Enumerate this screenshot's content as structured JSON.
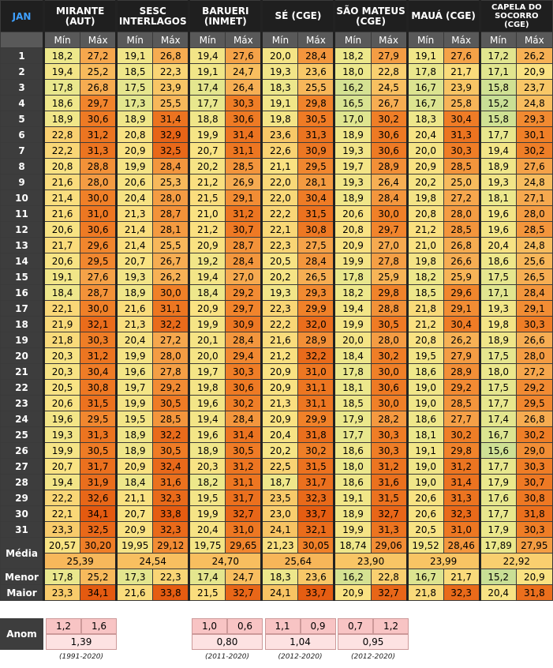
{
  "header": {
    "month": "JAN",
    "stations": [
      [
        "MIRANTE",
        "(AUT)"
      ],
      [
        "SESC",
        "INTERLAGOS"
      ],
      [
        "BARUERI",
        "(INMET)"
      ],
      [
        "SÉ (CGE)"
      ],
      [
        "SÃO MATEUS",
        "(CGE)"
      ],
      [
        "MAUÁ (CGE)"
      ],
      [
        "CAPELA DO",
        "SOCORRO",
        "(CGE)"
      ]
    ],
    "min_label": "Mín",
    "max_label": "Máx"
  },
  "days": [
    1,
    2,
    3,
    4,
    5,
    6,
    7,
    8,
    9,
    10,
    11,
    12,
    13,
    14,
    15,
    16,
    17,
    18,
    19,
    20,
    21,
    22,
    23,
    24,
    25,
    26,
    27,
    28,
    29,
    30,
    31
  ],
  "rows": [
    [
      "18,2",
      "27,2",
      "19,1",
      "26,8",
      "19,4",
      "27,6",
      "20,0",
      "28,4",
      "18,2",
      "27,9",
      "19,1",
      "27,6",
      "17,2",
      "26,2"
    ],
    [
      "19,4",
      "25,2",
      "18,5",
      "22,3",
      "19,1",
      "24,7",
      "19,3",
      "23,6",
      "18,0",
      "22,8",
      "17,8",
      "21,7",
      "17,1",
      "20,9"
    ],
    [
      "17,8",
      "26,8",
      "17,5",
      "23,9",
      "17,4",
      "26,4",
      "18,3",
      "25,5",
      "16,2",
      "24,5",
      "16,7",
      "23,9",
      "15,8",
      "23,7"
    ],
    [
      "18,6",
      "29,7",
      "17,3",
      "25,5",
      "17,7",
      "30,3",
      "19,1",
      "29,8",
      "16,5",
      "26,7",
      "16,7",
      "25,8",
      "15,2",
      "24,8"
    ],
    [
      "18,9",
      "30,6",
      "18,9",
      "31,4",
      "18,8",
      "30,6",
      "19,8",
      "30,5",
      "17,0",
      "30,2",
      "18,3",
      "30,4",
      "15,8",
      "29,3"
    ],
    [
      "22,8",
      "31,2",
      "20,8",
      "32,9",
      "19,9",
      "31,4",
      "23,6",
      "31,3",
      "18,9",
      "30,6",
      "20,4",
      "31,3",
      "17,7",
      "30,1"
    ],
    [
      "22,2",
      "31,3",
      "20,9",
      "32,5",
      "20,7",
      "31,1",
      "22,6",
      "30,9",
      "19,3",
      "30,6",
      "20,0",
      "30,3",
      "19,4",
      "30,2"
    ],
    [
      "20,8",
      "28,8",
      "19,9",
      "28,4",
      "20,2",
      "28,5",
      "21,1",
      "29,5",
      "19,7",
      "28,9",
      "20,9",
      "28,5",
      "18,9",
      "27,6"
    ],
    [
      "21,6",
      "28,0",
      "20,6",
      "25,3",
      "21,2",
      "26,9",
      "22,0",
      "28,1",
      "19,3",
      "26,4",
      "20,2",
      "25,0",
      "19,3",
      "24,8"
    ],
    [
      "21,4",
      "30,0",
      "20,4",
      "28,0",
      "21,5",
      "29,1",
      "22,0",
      "30,4",
      "18,9",
      "28,4",
      "19,8",
      "27,2",
      "18,1",
      "27,1"
    ],
    [
      "21,6",
      "31,0",
      "21,3",
      "28,7",
      "21,0",
      "31,2",
      "22,2",
      "31,5",
      "20,6",
      "30,0",
      "20,8",
      "28,0",
      "19,6",
      "28,0"
    ],
    [
      "20,6",
      "30,6",
      "21,4",
      "28,1",
      "21,2",
      "30,7",
      "22,1",
      "30,8",
      "20,8",
      "29,7",
      "21,2",
      "28,5",
      "19,6",
      "28,5"
    ],
    [
      "21,7",
      "29,6",
      "21,4",
      "25,5",
      "20,9",
      "28,7",
      "22,3",
      "27,5",
      "20,9",
      "27,0",
      "21,0",
      "26,8",
      "20,4",
      "24,8"
    ],
    [
      "20,6",
      "29,5",
      "20,7",
      "26,7",
      "19,2",
      "28,4",
      "20,5",
      "28,4",
      "19,9",
      "27,8",
      "19,8",
      "26,6",
      "18,6",
      "25,6"
    ],
    [
      "19,1",
      "27,6",
      "19,3",
      "26,2",
      "19,4",
      "27,0",
      "20,2",
      "26,5",
      "17,8",
      "25,9",
      "18,2",
      "25,9",
      "17,5",
      "26,5"
    ],
    [
      "18,4",
      "28,7",
      "18,9",
      "30,0",
      "18,4",
      "29,2",
      "19,3",
      "29,3",
      "18,2",
      "29,8",
      "18,5",
      "29,6",
      "17,1",
      "28,4"
    ],
    [
      "22,1",
      "30,0",
      "21,6",
      "31,1",
      "20,9",
      "29,7",
      "22,3",
      "29,9",
      "19,4",
      "28,8",
      "21,8",
      "29,1",
      "19,3",
      "29,1"
    ],
    [
      "21,9",
      "32,1",
      "21,3",
      "32,2",
      "19,9",
      "30,9",
      "22,2",
      "32,0",
      "19,9",
      "30,5",
      "21,2",
      "30,4",
      "19,8",
      "30,3"
    ],
    [
      "21,8",
      "30,3",
      "20,4",
      "27,2",
      "20,1",
      "28,4",
      "21,6",
      "28,9",
      "20,0",
      "28,0",
      "20,8",
      "26,2",
      "18,9",
      "26,6"
    ],
    [
      "20,3",
      "31,2",
      "19,9",
      "28,0",
      "20,0",
      "29,4",
      "21,2",
      "32,2",
      "18,4",
      "30,2",
      "19,5",
      "27,9",
      "17,5",
      "28,0"
    ],
    [
      "20,3",
      "30,4",
      "19,6",
      "27,8",
      "19,7",
      "30,3",
      "20,9",
      "31,0",
      "17,8",
      "30,0",
      "18,6",
      "28,9",
      "18,0",
      "27,2"
    ],
    [
      "20,5",
      "30,8",
      "19,7",
      "29,2",
      "19,8",
      "30,6",
      "20,9",
      "31,1",
      "18,1",
      "30,6",
      "19,0",
      "29,2",
      "17,5",
      "29,2"
    ],
    [
      "20,6",
      "31,5",
      "19,9",
      "30,5",
      "19,6",
      "30,2",
      "21,3",
      "31,1",
      "18,5",
      "30,0",
      "19,0",
      "28,5",
      "17,7",
      "29,5"
    ],
    [
      "19,6",
      "29,5",
      "19,5",
      "28,5",
      "19,4",
      "28,4",
      "20,9",
      "29,9",
      "17,9",
      "28,2",
      "18,6",
      "27,7",
      "17,4",
      "26,8"
    ],
    [
      "19,3",
      "31,3",
      "18,9",
      "32,2",
      "19,6",
      "31,4",
      "20,4",
      "31,8",
      "17,7",
      "30,3",
      "18,1",
      "30,2",
      "16,7",
      "30,2"
    ],
    [
      "19,9",
      "30,5",
      "18,9",
      "30,5",
      "18,9",
      "30,5",
      "20,2",
      "30,2",
      "18,6",
      "30,3",
      "19,1",
      "29,8",
      "15,6",
      "29,0"
    ],
    [
      "20,7",
      "31,7",
      "20,9",
      "32,4",
      "20,3",
      "31,2",
      "22,5",
      "31,5",
      "18,0",
      "31,2",
      "19,0",
      "31,2",
      "17,7",
      "30,3"
    ],
    [
      "19,4",
      "31,9",
      "18,4",
      "31,6",
      "18,2",
      "31,1",
      "18,7",
      "31,7",
      "18,6",
      "31,6",
      "19,0",
      "31,4",
      "17,9",
      "30,7"
    ],
    [
      "22,2",
      "32,6",
      "21,1",
      "32,3",
      "19,5",
      "31,7",
      "23,5",
      "32,3",
      "19,1",
      "31,5",
      "20,6",
      "31,3",
      "17,6",
      "30,8"
    ],
    [
      "22,1",
      "34,1",
      "20,7",
      "33,8",
      "19,9",
      "32,7",
      "23,0",
      "33,7",
      "18,9",
      "32,7",
      "20,6",
      "32,3",
      "17,7",
      "31,8"
    ],
    [
      "23,3",
      "32,5",
      "20,9",
      "32,3",
      "20,4",
      "31,0",
      "24,1",
      "32,1",
      "19,9",
      "31,3",
      "20,5",
      "31,0",
      "17,9",
      "30,3"
    ]
  ],
  "summary": {
    "mean_label": "Média",
    "mean": [
      "20,57",
      "30,20",
      "19,95",
      "29,12",
      "19,75",
      "29,65",
      "21,23",
      "30,05",
      "18,74",
      "29,06",
      "19,52",
      "28,46",
      "17,89",
      "27,95"
    ],
    "mean_avg": [
      "25,39",
      "24,54",
      "24,70",
      "25,64",
      "23,90",
      "23,99",
      "22,92"
    ],
    "min_label": "Menor",
    "min": [
      "17,8",
      "25,2",
      "17,3",
      "22,3",
      "17,4",
      "24,7",
      "18,3",
      "23,6",
      "16,2",
      "22,8",
      "16,7",
      "21,7",
      "15,2",
      "20,9"
    ],
    "max_label": "Maior",
    "max": [
      "23,3",
      "34,1",
      "21,6",
      "33,8",
      "21,5",
      "32,7",
      "24,1",
      "33,7",
      "20,9",
      "32,7",
      "21,8",
      "32,3",
      "20,4",
      "31,8"
    ]
  },
  "anomaly": {
    "label": "Anom",
    "groups": [
      {
        "values": [
          "1,2",
          "1,6"
        ],
        "avg": "1,39",
        "period": "(1991-2020)"
      },
      {
        "values": [
          "1,0",
          "0,6"
        ],
        "avg": "0,80",
        "period": "(2011-2020)"
      },
      {
        "values": [
          "1,1",
          "0,9"
        ],
        "avg": "1,04",
        "period": "(2012-2020)"
      },
      {
        "values": [
          "0,7",
          "1,2"
        ],
        "avg": "0,95",
        "period": "(2012-2020)"
      }
    ]
  }
}
